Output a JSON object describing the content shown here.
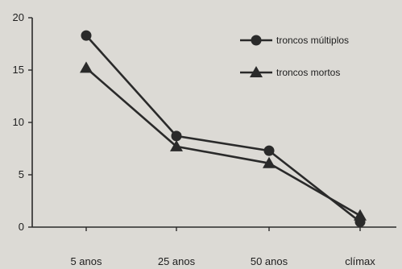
{
  "chart_data": {
    "type": "line",
    "categories": [
      "5 anos",
      "25 anos",
      "50 anos",
      "clímax"
    ],
    "series": [
      {
        "name": "troncos múltiplos",
        "marker": "circle",
        "values": [
          18.3,
          8.7,
          7.3,
          0.5
        ]
      },
      {
        "name": "troncos mortos",
        "marker": "triangle",
        "values": [
          15.2,
          7.7,
          6.1,
          1.1
        ]
      }
    ],
    "y_ticks": [
      0,
      5,
      10,
      15,
      20
    ],
    "ylim": [
      0,
      20
    ],
    "title": "",
    "xlabel": "",
    "ylabel": "",
    "grid": false,
    "legend": "top-right",
    "colors": {
      "line": "#2a2a2a",
      "background": "#dcdad5"
    }
  }
}
